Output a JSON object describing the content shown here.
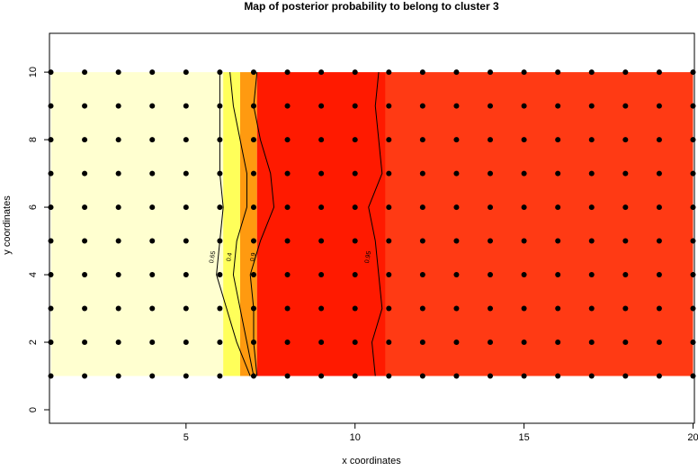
{
  "chart_data": {
    "type": "probability-map",
    "title": "Map of posterior probability to belong to cluster  3",
    "x_label": "x coordinates",
    "y_label": "y coordinates",
    "xlim": [
      0.96,
      20.04
    ],
    "ylim": [
      -0.4,
      11.15
    ],
    "xticks": [
      5,
      10,
      15,
      20
    ],
    "yticks": [
      0,
      2,
      4,
      6,
      8,
      10
    ],
    "x": [
      1,
      2,
      3,
      4,
      5,
      6,
      7,
      8,
      9,
      10,
      11,
      12,
      13,
      14,
      15,
      16,
      17,
      18,
      19,
      20
    ],
    "y": [
      1,
      2,
      3,
      4,
      5,
      6,
      7,
      8,
      9,
      10
    ],
    "point_color": "#000000",
    "bands": [
      {
        "x0": 1,
        "x1": 6.1,
        "color": "#ffffd0"
      },
      {
        "x0": 6.1,
        "x1": 6.6,
        "color": "#ffff5a"
      },
      {
        "x0": 6.6,
        "x1": 7.1,
        "color": "#ff9a10"
      },
      {
        "x0": 7.1,
        "x1": 10.9,
        "color": "#ff1a00"
      },
      {
        "x0": 10.9,
        "x1": 20,
        "color": "#ff3a14"
      }
    ],
    "contours": [
      {
        "level": 0.65,
        "x": [
          6.9,
          6.5,
          6.2,
          5.9,
          6.0,
          6.1,
          6.0,
          6.0,
          6.0,
          6.0
        ]
      },
      {
        "level": 0.4,
        "x": [
          7.0,
          6.8,
          6.6,
          6.4,
          6.5,
          6.8,
          6.8,
          6.6,
          6.4,
          6.3
        ]
      },
      {
        "level": 0.9,
        "x": [
          7.1,
          7.0,
          7.0,
          6.9,
          7.2,
          7.6,
          7.5,
          7.2,
          7.0,
          7.1
        ]
      },
      {
        "level": 0.95,
        "x": [
          10.6,
          10.5,
          10.8,
          10.7,
          10.6,
          10.4,
          10.8,
          10.7,
          10.6,
          10.7
        ]
      }
    ]
  }
}
